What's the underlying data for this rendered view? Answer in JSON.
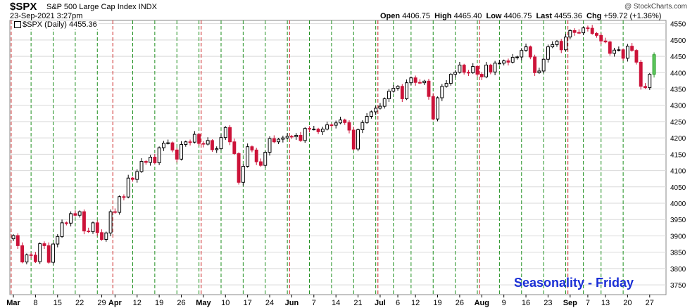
{
  "header": {
    "ticker": "$SPX",
    "name": "S&P 500 Large Cap Index INDX",
    "date": "23-Sep-2021 3:27pm",
    "credit": "@ StockCharts.com",
    "open_label": "Open",
    "open": "4406.75",
    "high_label": "High",
    "high": "4465.40",
    "low_label": "Low",
    "low": "4406.75",
    "last_label": "Last",
    "last": "4455.36",
    "chg_label": "Chg",
    "chg": "+59.72 (+1.36%)"
  },
  "legend": {
    "text": "$SPX (Daily) 4455.36"
  },
  "overlay_text": "Seasonality - Friday",
  "colors": {
    "up": "#ffffff",
    "down": "#cc1339",
    "last_up": "#5cc85c",
    "friday_line": "#1e8f1e",
    "month_line": "#cc2222",
    "grid": "#d9d9d9"
  },
  "chart_data": {
    "type": "candlestick",
    "title": "$SPX (Daily) 4455.36",
    "ylim": [
      3720,
      4560
    ],
    "y_ticks": [
      3750,
      3800,
      3850,
      3900,
      3950,
      4000,
      4050,
      4100,
      4150,
      4200,
      4250,
      4300,
      4350,
      4400,
      4450,
      4500,
      4550
    ],
    "x_tick_labels": [
      "Mar",
      "8",
      "15",
      "22",
      "29",
      "Apr",
      "12",
      "19",
      "26",
      "May",
      "10",
      "17",
      "24",
      "Jun",
      "7",
      "14",
      "21",
      "Jul",
      "6",
      "12",
      "19",
      "26",
      "Aug",
      "9",
      "16",
      "23",
      "Sep",
      "7",
      "13",
      "20",
      "27"
    ],
    "x_tick_days": [
      0,
      5,
      10,
      15,
      20,
      23,
      28,
      33,
      38,
      43,
      48,
      53,
      58,
      63,
      68,
      73,
      78,
      83,
      87,
      91,
      96,
      101,
      106,
      111,
      116,
      121,
      126,
      130,
      134,
      139,
      144
    ],
    "month_start_days": [
      0,
      23,
      43,
      63,
      83,
      106,
      126
    ],
    "friday_days": [
      4,
      9,
      14,
      19,
      27,
      32,
      37,
      42,
      47,
      52,
      57,
      62,
      67,
      72,
      77,
      82,
      86,
      90,
      95,
      100,
      105,
      110,
      115,
      120,
      125,
      129,
      133,
      138
    ],
    "closes": [
      3901,
      3870,
      3820,
      3842,
      3841,
      3821,
      3876,
      3870,
      3819,
      3875,
      3898,
      3940,
      3939,
      3968,
      3963,
      3974,
      3915,
      3913,
      3940,
      3910,
      3889,
      3909,
      3974,
      3972,
      4020,
      4019,
      4077,
      4073,
      4097,
      4128,
      4125,
      4141,
      4124,
      4170,
      4184,
      4185,
      4163,
      4135,
      4180,
      4188,
      4187,
      4211,
      4183,
      4181,
      4192,
      4164,
      4167,
      4201,
      4232,
      4188,
      4152,
      4064,
      4113,
      4173,
      4163,
      4127,
      4116,
      4156,
      4198,
      4188,
      4196,
      4200,
      4205,
      4204,
      4208,
      4192,
      4229,
      4227,
      4227,
      4219,
      4227,
      4240,
      4239,
      4246,
      4255,
      4247,
      4224,
      4166,
      4225,
      4247,
      4266,
      4280,
      4291,
      4297,
      4320,
      4343,
      4352,
      4358,
      4320,
      4369,
      4384,
      4370,
      4369,
      4374,
      4327,
      4258,
      4323,
      4358,
      4367,
      4395,
      4401,
      4423,
      4401,
      4400,
      4419,
      4395,
      4387,
      4423,
      4402,
      4429,
      4429,
      4436,
      4432,
      4447,
      4448,
      4468,
      4479,
      4448,
      4400,
      4405,
      4441,
      4479,
      4486,
      4496,
      4470,
      4509,
      4529,
      4523,
      4522,
      4537,
      4536,
      4520,
      4514,
      4497,
      4494,
      4459,
      4469,
      4470,
      4444,
      4481,
      4468,
      4432,
      4358,
      4354,
      4395,
      4455
    ]
  }
}
